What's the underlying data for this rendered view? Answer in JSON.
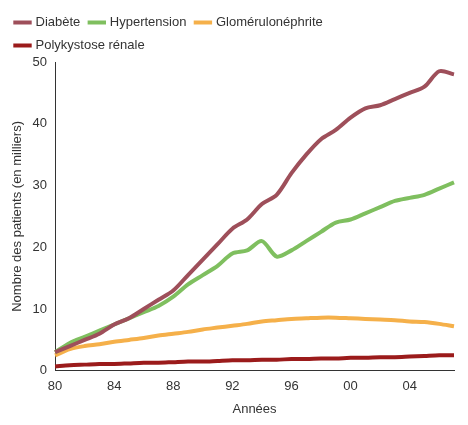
{
  "chart_data": {
    "type": "line",
    "x_label": "Années",
    "y_label": "Nombre des patients (en milliers)",
    "categories": [
      "80",
      null,
      null,
      null,
      "84",
      null,
      null,
      null,
      "88",
      null,
      null,
      null,
      "92",
      null,
      null,
      null,
      "96",
      null,
      null,
      null,
      "00",
      null,
      null,
      null,
      "04",
      null,
      null,
      null
    ],
    "series": [
      {
        "name": "Diabète",
        "color": "#9e4f5a",
        "values": [
          3,
          4,
          5,
          6,
          7.5,
          8.5,
          10,
          11.5,
          13,
          15.5,
          18,
          20.5,
          23,
          24.5,
          27,
          28.5,
          32,
          35,
          37.5,
          39,
          41,
          42.5,
          43,
          44,
          45,
          46,
          48.5,
          48
        ]
      },
      {
        "name": "Hypertension",
        "color": "#7fbf5f",
        "values": [
          3,
          4.5,
          5.5,
          6.5,
          7.5,
          8.5,
          9.5,
          10.5,
          12,
          14,
          15.5,
          17,
          19,
          19.5,
          21,
          18.5,
          19.5,
          21,
          22.5,
          24,
          24.5,
          25.5,
          26.5,
          27.5,
          28,
          28.5,
          29.5,
          30.5
        ]
      },
      {
        "name": "Glomérulonéphrite",
        "color": "#f5b04a",
        "values": [
          2.5,
          3.5,
          4,
          4.3,
          4.7,
          5,
          5.3,
          5.7,
          6,
          6.3,
          6.7,
          7,
          7.3,
          7.6,
          8,
          8.2,
          8.4,
          8.5,
          8.6,
          8.6,
          8.5,
          8.4,
          8.3,
          8.2,
          8,
          7.9,
          7.6,
          7.2
        ]
      },
      {
        "name": "Polykystose rénale",
        "color": "#9b1b1b",
        "values": [
          0.7,
          0.9,
          1,
          1.1,
          1.1,
          1.2,
          1.3,
          1.3,
          1.4,
          1.5,
          1.5,
          1.6,
          1.7,
          1.7,
          1.8,
          1.8,
          1.9,
          1.9,
          2,
          2,
          2.1,
          2.1,
          2.2,
          2.2,
          2.3,
          2.4,
          2.5,
          2.5
        ]
      }
    ],
    "ylim": [
      0,
      50
    ],
    "yticks": [
      0,
      10,
      20,
      30,
      40,
      50
    ],
    "grid": false,
    "legend": "top-left"
  }
}
